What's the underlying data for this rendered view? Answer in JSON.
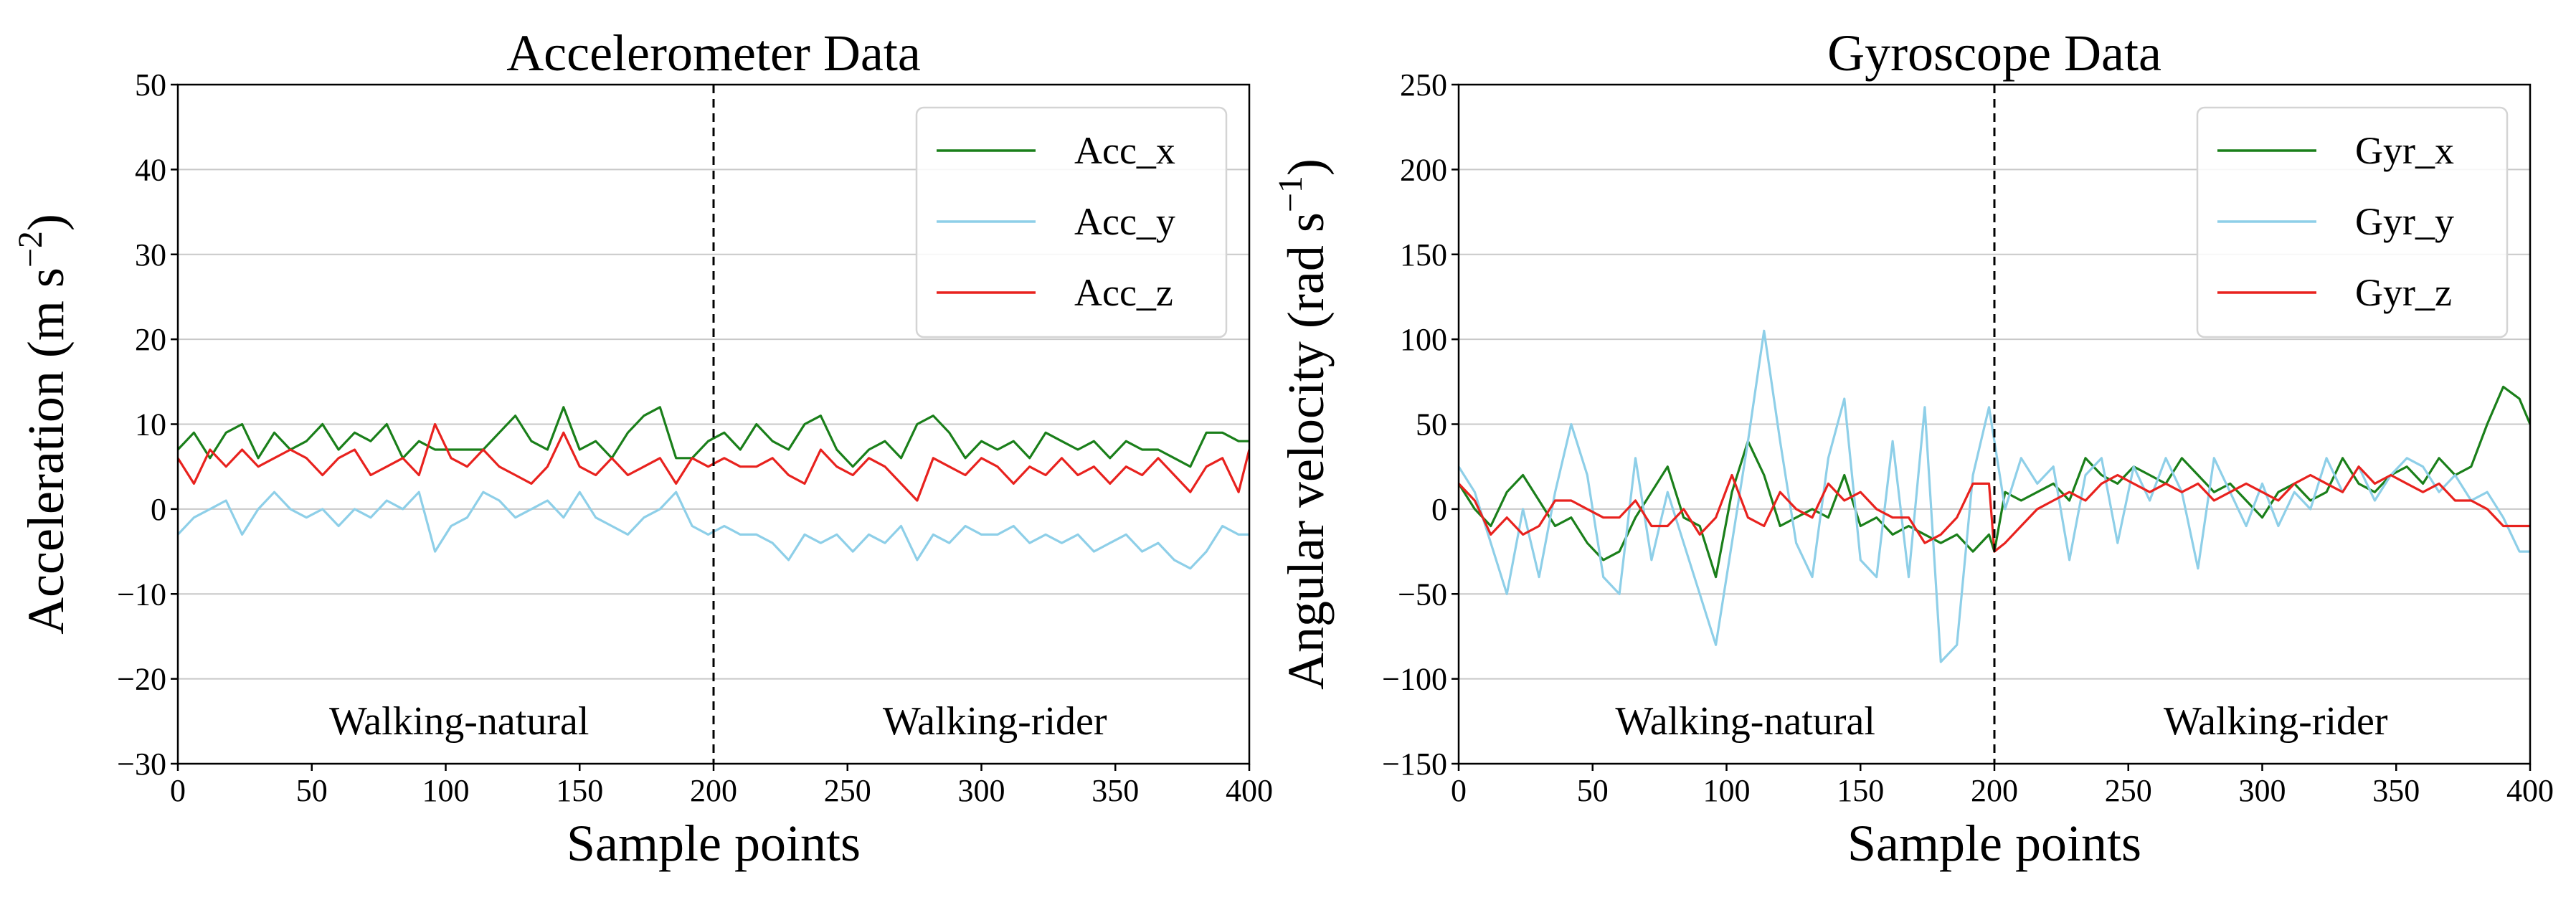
{
  "chart_data": [
    {
      "type": "line",
      "title": "Accelerometer Data",
      "xlabel": "Sample points",
      "ylabel_main": "Acceleration (m s",
      "ylabel_sup": "−2",
      "ylabel_end": ")",
      "xlim": [
        0,
        400
      ],
      "ylim": [
        -30,
        50
      ],
      "xticks": [
        0,
        50,
        100,
        150,
        200,
        250,
        300,
        350,
        400
      ],
      "yticks": [
        -30,
        -20,
        -10,
        0,
        10,
        20,
        30,
        40,
        50
      ],
      "grid": "horizontal",
      "legend_position": "top-right",
      "divider_x": 200,
      "annotations": [
        {
          "text": "Walking-natural",
          "x": 105,
          "y": -25
        },
        {
          "text": "Walking-rider",
          "x": 305,
          "y": -25
        }
      ],
      "series": [
        {
          "name": "Acc_x",
          "color": "#1a7f1a",
          "x": [
            0,
            6,
            12,
            18,
            24,
            30,
            36,
            42,
            48,
            54,
            60,
            66,
            72,
            78,
            84,
            90,
            96,
            102,
            108,
            114,
            120,
            126,
            132,
            138,
            144,
            150,
            156,
            162,
            168,
            174,
            180,
            186,
            192,
            198,
            204,
            210,
            216,
            222,
            228,
            234,
            240,
            246,
            252,
            258,
            264,
            270,
            276,
            282,
            288,
            294,
            300,
            306,
            312,
            318,
            324,
            330,
            336,
            342,
            348,
            354,
            360,
            366,
            372,
            378,
            384,
            390,
            396,
            400
          ],
          "values": [
            7,
            9,
            6,
            9,
            10,
            6,
            9,
            7,
            8,
            10,
            7,
            9,
            8,
            10,
            6,
            8,
            7,
            7,
            7,
            7,
            9,
            11,
            8,
            7,
            12,
            7,
            8,
            6,
            9,
            11,
            12,
            6,
            6,
            8,
            9,
            7,
            10,
            8,
            7,
            10,
            11,
            7,
            5,
            7,
            8,
            6,
            10,
            11,
            9,
            6,
            8,
            7,
            8,
            6,
            9,
            8,
            7,
            8,
            6,
            8,
            7,
            7,
            6,
            5,
            9,
            9,
            8,
            8
          ]
        },
        {
          "name": "Acc_y",
          "color": "#8ecfe8",
          "x": [
            0,
            6,
            12,
            18,
            24,
            30,
            36,
            42,
            48,
            54,
            60,
            66,
            72,
            78,
            84,
            90,
            96,
            102,
            108,
            114,
            120,
            126,
            132,
            138,
            144,
            150,
            156,
            162,
            168,
            174,
            180,
            186,
            192,
            198,
            204,
            210,
            216,
            222,
            228,
            234,
            240,
            246,
            252,
            258,
            264,
            270,
            276,
            282,
            288,
            294,
            300,
            306,
            312,
            318,
            324,
            330,
            336,
            342,
            348,
            354,
            360,
            366,
            372,
            378,
            384,
            390,
            396,
            400
          ],
          "values": [
            -3,
            -1,
            0,
            1,
            -3,
            0,
            2,
            0,
            -1,
            0,
            -2,
            0,
            -1,
            1,
            0,
            2,
            -5,
            -2,
            -1,
            2,
            1,
            -1,
            0,
            1,
            -1,
            2,
            -1,
            -2,
            -3,
            -1,
            0,
            2,
            -2,
            -3,
            -2,
            -3,
            -3,
            -4,
            -6,
            -3,
            -4,
            -3,
            -5,
            -3,
            -4,
            -2,
            -6,
            -3,
            -4,
            -2,
            -3,
            -3,
            -2,
            -4,
            -3,
            -4,
            -3,
            -5,
            -4,
            -3,
            -5,
            -4,
            -6,
            -7,
            -5,
            -2,
            -3,
            -3
          ]
        },
        {
          "name": "Acc_z",
          "color": "#e8221e",
          "x": [
            0,
            6,
            12,
            18,
            24,
            30,
            36,
            42,
            48,
            54,
            60,
            66,
            72,
            78,
            84,
            90,
            96,
            102,
            108,
            114,
            120,
            126,
            132,
            138,
            144,
            150,
            156,
            162,
            168,
            174,
            180,
            186,
            192,
            198,
            204,
            210,
            216,
            222,
            228,
            234,
            240,
            246,
            252,
            258,
            264,
            270,
            276,
            282,
            288,
            294,
            300,
            306,
            312,
            318,
            324,
            330,
            336,
            342,
            348,
            354,
            360,
            366,
            372,
            378,
            384,
            390,
            396,
            400
          ],
          "values": [
            6,
            3,
            7,
            5,
            7,
            5,
            6,
            7,
            6,
            4,
            6,
            7,
            4,
            5,
            6,
            4,
            10,
            6,
            5,
            7,
            5,
            4,
            3,
            5,
            9,
            5,
            4,
            6,
            4,
            5,
            6,
            3,
            6,
            5,
            6,
            5,
            5,
            6,
            4,
            3,
            7,
            5,
            4,
            6,
            5,
            3,
            1,
            6,
            5,
            4,
            6,
            5,
            3,
            5,
            4,
            6,
            4,
            5,
            3,
            5,
            4,
            6,
            4,
            2,
            5,
            6,
            2,
            7
          ]
        }
      ]
    },
    {
      "type": "line",
      "title": "Gyroscope Data",
      "xlabel": "Sample points",
      "ylabel_main": "Angular velocity (rad s",
      "ylabel_sup": "−1",
      "ylabel_end": ")",
      "xlim": [
        0,
        400
      ],
      "ylim": [
        -150,
        250
      ],
      "xticks": [
        0,
        50,
        100,
        150,
        200,
        250,
        300,
        350,
        400
      ],
      "yticks": [
        -150,
        -100,
        -50,
        0,
        50,
        100,
        150,
        200,
        250
      ],
      "grid": "horizontal",
      "legend_position": "top-right",
      "divider_x": 200,
      "annotations": [
        {
          "text": "Walking-natural",
          "x": 107,
          "y": -125
        },
        {
          "text": "Walking-rider",
          "x": 305,
          "y": -125
        }
      ],
      "series": [
        {
          "name": "Gyr_x",
          "color": "#1a7f1a",
          "x": [
            0,
            6,
            12,
            18,
            24,
            30,
            36,
            42,
            48,
            54,
            60,
            66,
            72,
            78,
            84,
            90,
            96,
            102,
            108,
            114,
            120,
            126,
            132,
            138,
            144,
            150,
            156,
            162,
            168,
            174,
            180,
            186,
            192,
            198,
            200,
            204,
            210,
            216,
            222,
            228,
            234,
            240,
            246,
            252,
            258,
            264,
            270,
            276,
            282,
            288,
            294,
            300,
            306,
            312,
            318,
            324,
            330,
            336,
            342,
            348,
            354,
            360,
            366,
            372,
            378,
            384,
            390,
            396,
            400
          ],
          "values": [
            15,
            0,
            -10,
            10,
            20,
            5,
            -10,
            -5,
            -20,
            -30,
            -25,
            -5,
            10,
            25,
            -5,
            -10,
            -40,
            10,
            40,
            20,
            -10,
            -5,
            0,
            -5,
            20,
            -10,
            -5,
            -15,
            -10,
            -15,
            -20,
            -15,
            -25,
            -15,
            -25,
            10,
            5,
            10,
            15,
            5,
            30,
            20,
            15,
            25,
            20,
            15,
            30,
            20,
            10,
            15,
            5,
            -5,
            10,
            15,
            5,
            10,
            30,
            15,
            10,
            20,
            25,
            15,
            30,
            20,
            25,
            50,
            72,
            65,
            50
          ]
        },
        {
          "name": "Gyr_y",
          "color": "#8ecfe8",
          "x": [
            0,
            6,
            12,
            18,
            24,
            30,
            36,
            42,
            48,
            54,
            60,
            66,
            72,
            78,
            84,
            90,
            96,
            102,
            108,
            114,
            120,
            126,
            132,
            138,
            144,
            150,
            156,
            162,
            168,
            174,
            180,
            186,
            192,
            198,
            200,
            204,
            210,
            216,
            222,
            228,
            234,
            240,
            246,
            252,
            258,
            264,
            270,
            276,
            282,
            288,
            294,
            300,
            306,
            312,
            318,
            324,
            330,
            336,
            342,
            348,
            354,
            360,
            366,
            372,
            378,
            384,
            390,
            396,
            400
          ],
          "values": [
            25,
            10,
            -20,
            -50,
            0,
            -40,
            10,
            50,
            20,
            -40,
            -50,
            30,
            -30,
            10,
            -20,
            -50,
            -80,
            -20,
            40,
            105,
            40,
            -20,
            -40,
            30,
            65,
            -30,
            -40,
            40,
            -40,
            60,
            -90,
            -80,
            20,
            60,
            40,
            0,
            30,
            15,
            25,
            -30,
            20,
            30,
            -20,
            25,
            5,
            30,
            10,
            -35,
            30,
            10,
            -10,
            15,
            -10,
            10,
            0,
            30,
            10,
            25,
            5,
            20,
            30,
            25,
            10,
            20,
            5,
            10,
            -5,
            -25,
            -25
          ]
        },
        {
          "name": "Gyr_z",
          "color": "#e8221e",
          "x": [
            0,
            6,
            12,
            18,
            24,
            30,
            36,
            42,
            48,
            54,
            60,
            66,
            72,
            78,
            84,
            90,
            96,
            102,
            108,
            114,
            120,
            126,
            132,
            138,
            144,
            150,
            156,
            162,
            168,
            174,
            180,
            186,
            192,
            198,
            200,
            204,
            210,
            216,
            222,
            228,
            234,
            240,
            246,
            252,
            258,
            264,
            270,
            276,
            282,
            288,
            294,
            300,
            306,
            312,
            318,
            324,
            330,
            336,
            342,
            348,
            354,
            360,
            366,
            372,
            378,
            384,
            390,
            396,
            400
          ],
          "values": [
            15,
            5,
            -15,
            -5,
            -15,
            -10,
            5,
            5,
            0,
            -5,
            -5,
            5,
            -10,
            -10,
            0,
            -15,
            -5,
            20,
            -5,
            -10,
            10,
            0,
            -5,
            15,
            5,
            10,
            0,
            -5,
            -5,
            -20,
            -15,
            -5,
            15,
            15,
            -25,
            -20,
            -10,
            0,
            5,
            10,
            5,
            15,
            20,
            15,
            10,
            15,
            10,
            15,
            5,
            10,
            15,
            10,
            5,
            15,
            20,
            15,
            10,
            25,
            15,
            20,
            15,
            10,
            15,
            5,
            5,
            0,
            -10,
            -10,
            -10
          ]
        }
      ]
    }
  ]
}
